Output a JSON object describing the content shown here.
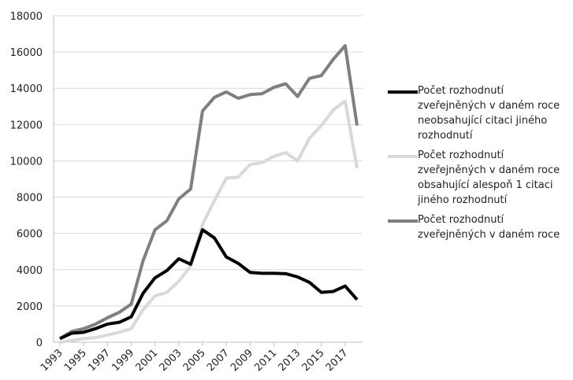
{
  "chart_data": {
    "type": "line",
    "x": [
      1993,
      1994,
      1995,
      1996,
      1997,
      1998,
      1999,
      2000,
      2001,
      2002,
      2003,
      2004,
      2005,
      2006,
      2007,
      2008,
      2009,
      2010,
      2011,
      2012,
      2013,
      2014,
      2015,
      2016,
      2017,
      2018
    ],
    "xlim": [
      1993,
      2018
    ],
    "xticks": [
      1993,
      1995,
      1997,
      1999,
      2001,
      2003,
      2005,
      2007,
      2009,
      2011,
      2013,
      2015,
      2017
    ],
    "ylim": [
      0,
      18000
    ],
    "yticks": [
      0,
      2000,
      4000,
      6000,
      8000,
      10000,
      12000,
      14000,
      16000,
      18000
    ],
    "grid": true,
    "legend": "right",
    "series": [
      {
        "name": "Počet rozhodnutí zveřejněných v daném roce neobsahující citaci jiného rozhodnutí",
        "color": "#000000",
        "values": [
          200,
          500,
          550,
          750,
          1000,
          1100,
          1400,
          2700,
          3550,
          3950,
          4600,
          4300,
          6200,
          5750,
          4700,
          4350,
          3850,
          3800,
          3800,
          3780,
          3600,
          3300,
          2750,
          2800,
          3100,
          2350
        ]
      },
      {
        "name": "Počet rozhodnutí zveřejněných v daném roce obsahující alespoň 1 citaci jiného rozhodnutí",
        "color": "#d9d9d9",
        "values": [
          0,
          100,
          200,
          250,
          400,
          550,
          750,
          1800,
          2550,
          2750,
          3350,
          4200,
          6500,
          7800,
          9050,
          9100,
          9800,
          9900,
          10250,
          10450,
          10000,
          11250,
          11950,
          12800,
          13300,
          9600
        ]
      },
      {
        "name": "Počet rozhodnutí zveřejněných v daném roce",
        "color": "#7f7f7f",
        "values": [
          200,
          600,
          750,
          1000,
          1350,
          1650,
          2100,
          4500,
          6200,
          6700,
          7900,
          8450,
          12750,
          13500,
          13800,
          13450,
          13650,
          13700,
          14050,
          14250,
          13550,
          14550,
          14700,
          15600,
          16350,
          11950
        ]
      }
    ]
  }
}
